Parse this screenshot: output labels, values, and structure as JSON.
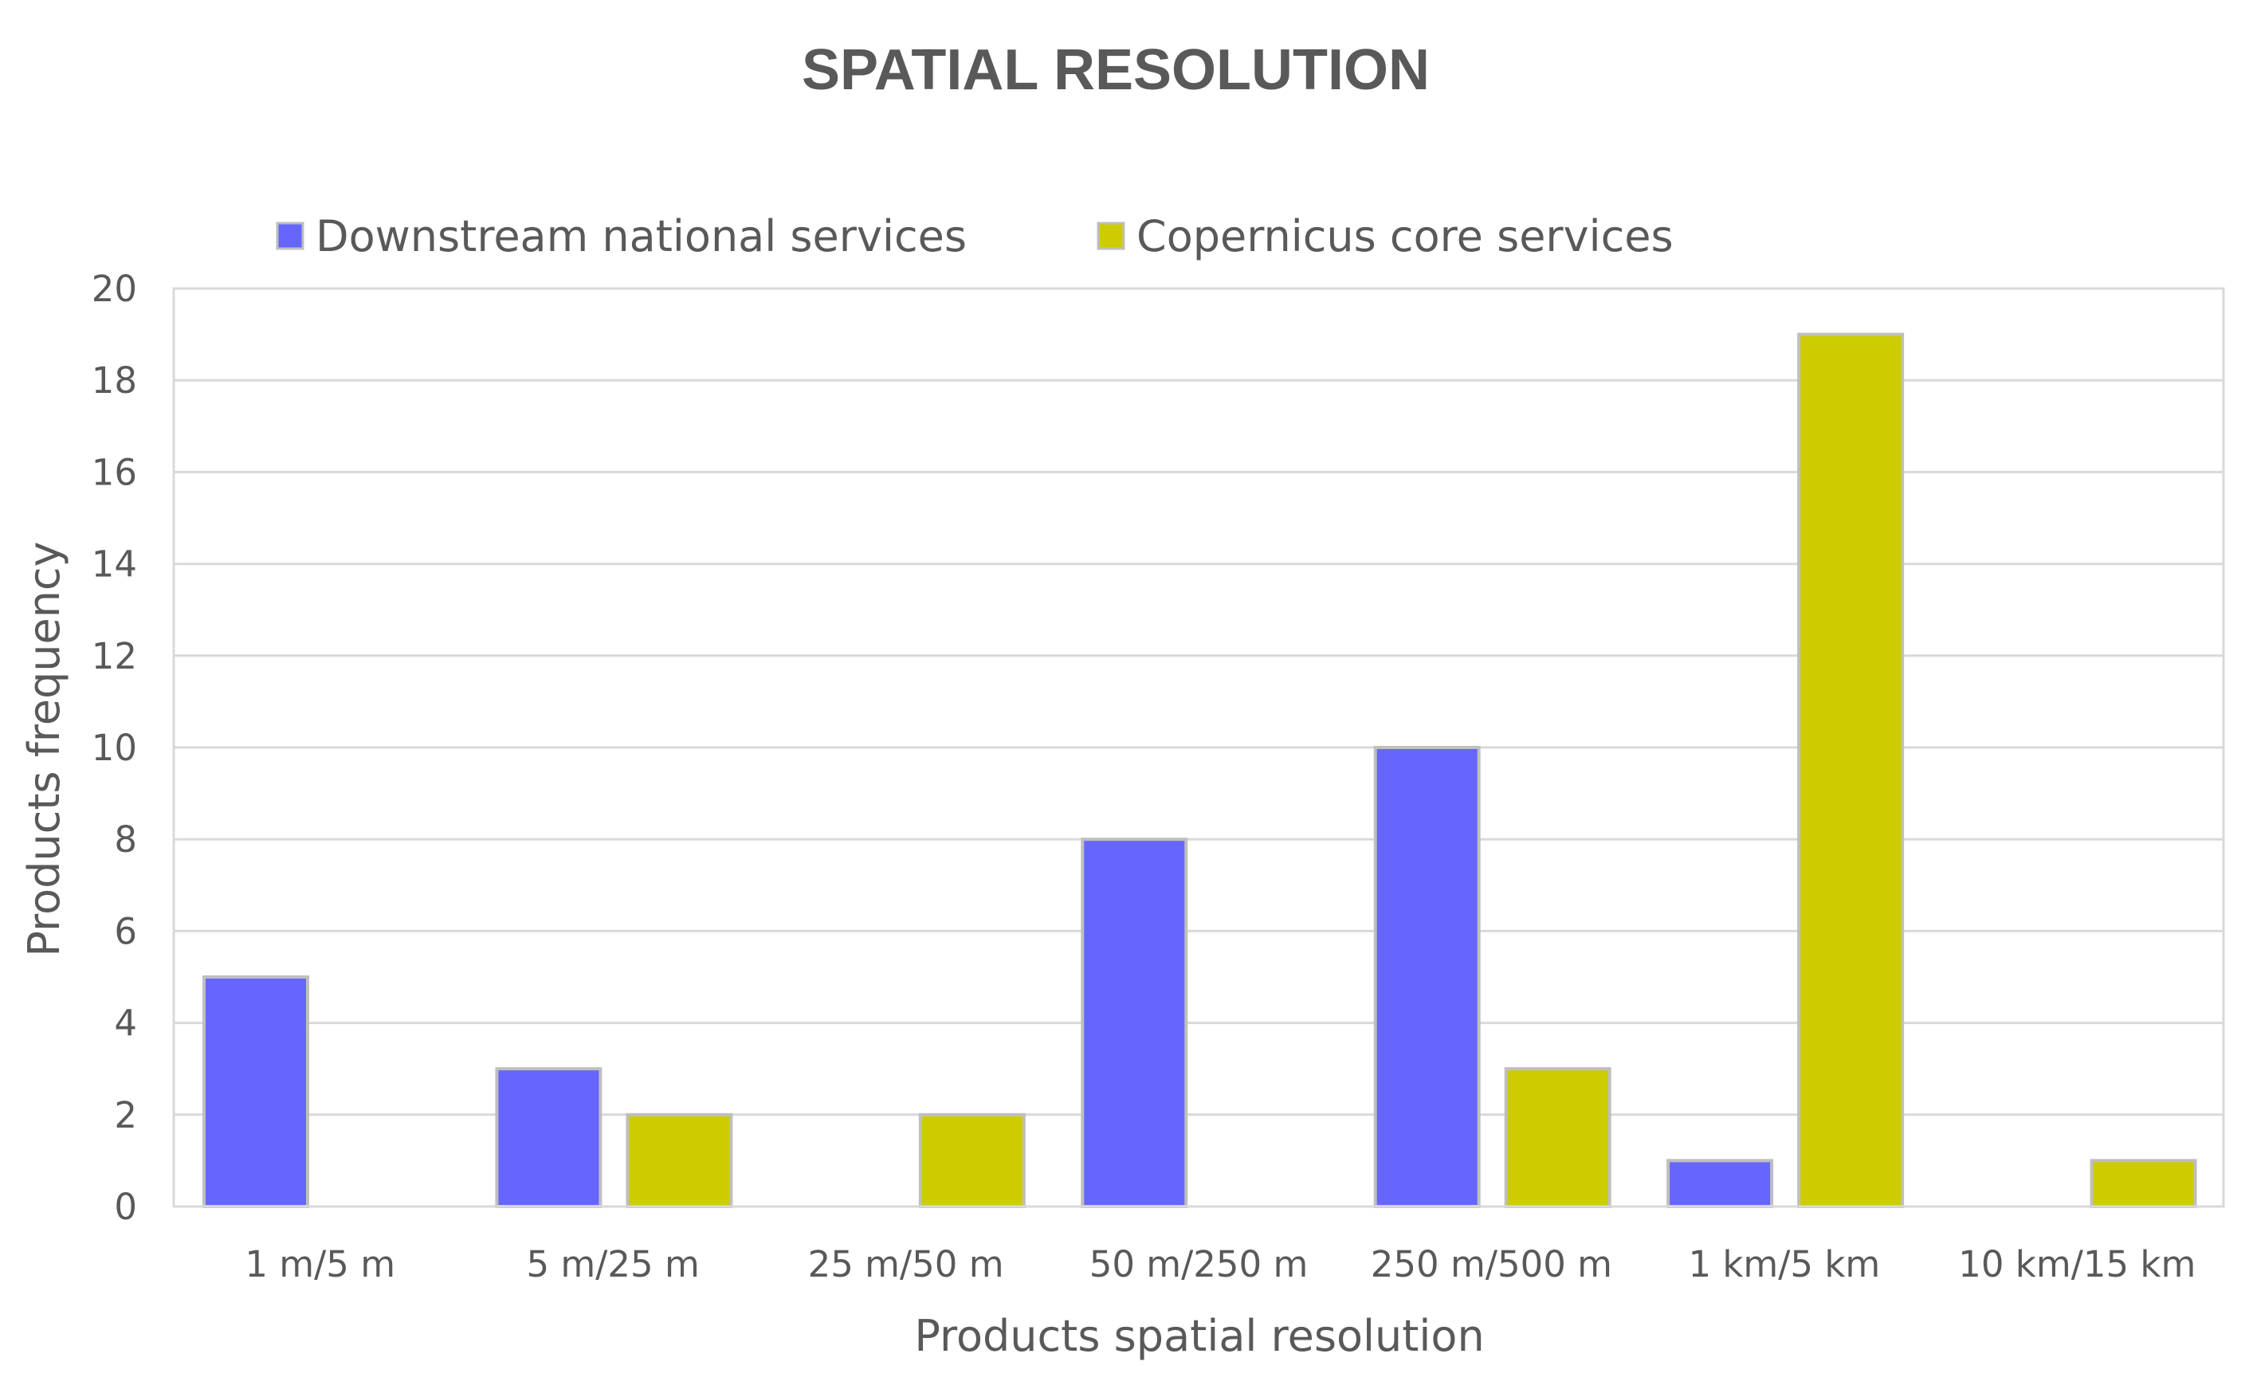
{
  "chart_data": {
    "type": "bar",
    "title": "SPATIAL RESOLUTION",
    "xlabel": "Products spatial resolution",
    "ylabel": "Products frequency",
    "ylim": [
      0,
      20
    ],
    "yticks": [
      "0",
      "2",
      "4",
      "6",
      "8",
      "10",
      "12",
      "14",
      "16",
      "18",
      "20"
    ],
    "grid": true,
    "legend_position": "top",
    "categories": [
      "1 m/5 m",
      "5 m/25 m",
      "25 m/50 m",
      "50 m/250 m",
      "250 m/500 m",
      "1 km/5 km",
      "10 km/15 km"
    ],
    "series": [
      {
        "name": "Downstream national services",
        "color": "#6666ff",
        "values": [
          5,
          3,
          0,
          8,
          10,
          1,
          0
        ]
      },
      {
        "name": "Copernicus core services",
        "color": "#cccc00",
        "values": [
          0,
          2,
          2,
          0,
          3,
          19,
          1
        ]
      }
    ]
  }
}
